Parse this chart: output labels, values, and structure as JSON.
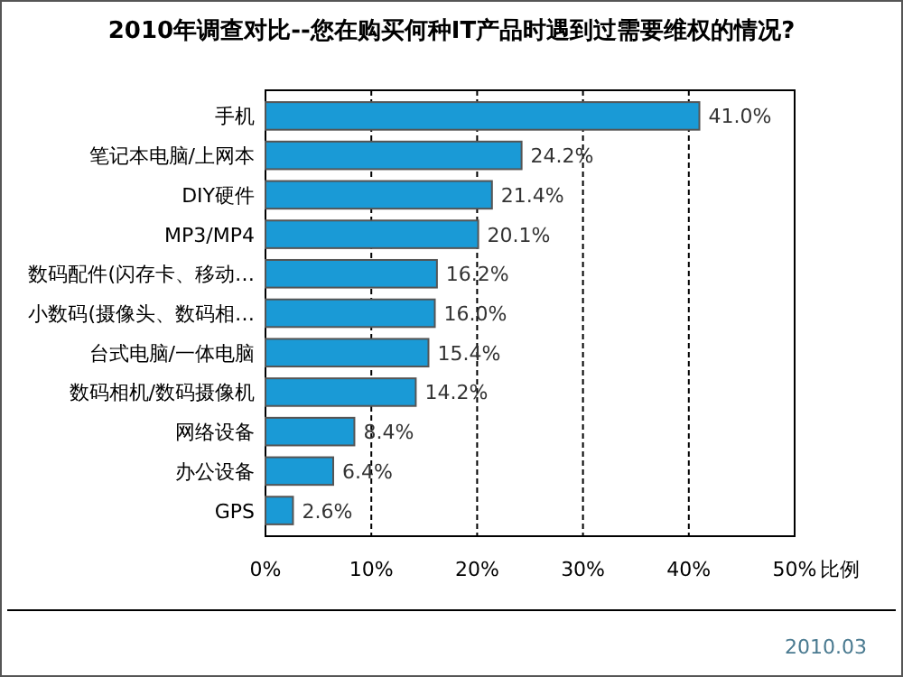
{
  "chart_data": {
    "type": "bar",
    "orientation": "horizontal",
    "title": "2010年调查对比--您在购买何种IT产品时遇到过需要维权的情况?",
    "xlabel": "比例",
    "categories": [
      "手机",
      "笔记本电脑/上网本",
      "DIY硬件",
      "MP3/MP4",
      "数码配件(闪存卡、移动…",
      "小数码(摄像头、数码相…",
      "台式电脑/一体电脑",
      "数码相机/数码摄像机",
      "网络设备",
      "办公设备",
      "GPS"
    ],
    "values": [
      41.0,
      24.2,
      21.4,
      20.1,
      16.2,
      16.0,
      15.4,
      14.2,
      8.4,
      6.4,
      2.6
    ],
    "value_labels": [
      "41.0%",
      "24.2%",
      "21.4%",
      "20.1%",
      "16.2%",
      "16.0%",
      "15.4%",
      "14.2%",
      "8.4%",
      "6.4%",
      "2.6%"
    ],
    "color": "#1a9ad6",
    "xlim": [
      0,
      50
    ],
    "xticks": [
      {
        "value": 0,
        "label": "0%"
      },
      {
        "value": 10,
        "label": "10%"
      },
      {
        "value": 20,
        "label": "20%"
      },
      {
        "value": 30,
        "label": "30%"
      },
      {
        "value": 40,
        "label": "40%"
      },
      {
        "value": 50,
        "label": "50%"
      }
    ],
    "grid": "x",
    "annotations": [
      "2010.03"
    ]
  }
}
